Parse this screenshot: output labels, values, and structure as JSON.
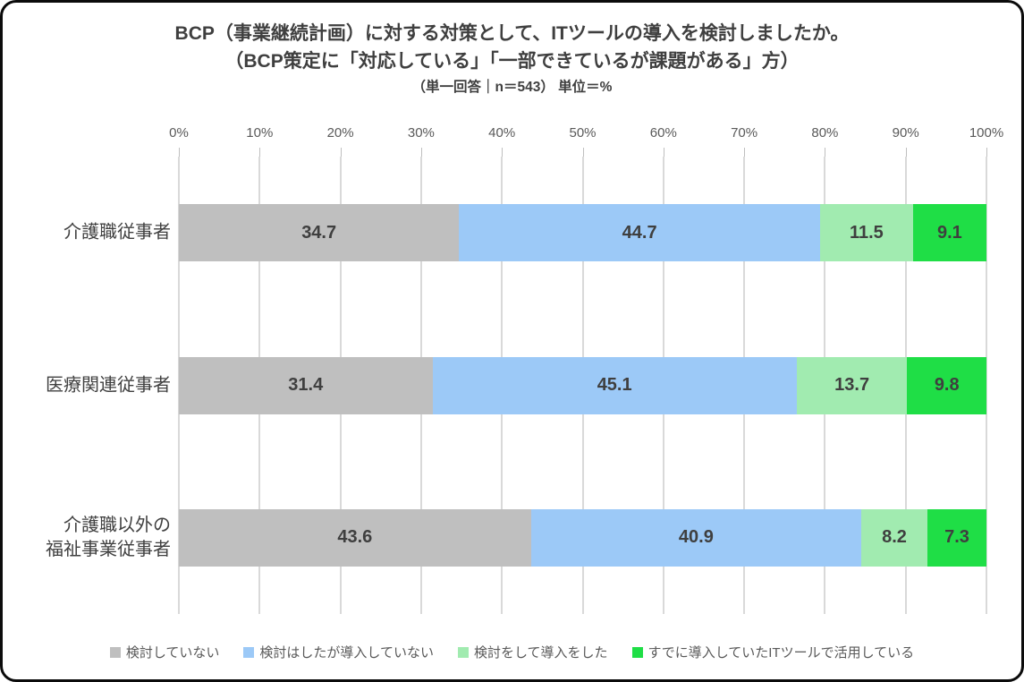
{
  "title": {
    "line1": "BCP（事業継続計画）に対する対策として、ITツールの導入を検討しましたか。",
    "line2": "（BCP策定に「対応している」「一部できているが課題がある」方）",
    "line3": "（単一回答｜n＝543） 単位＝%"
  },
  "chart_data": {
    "type": "bar",
    "orientation": "horizontal",
    "stacked": true,
    "unit": "%",
    "sample_size_text": "n＝543",
    "categories": [
      "介護職従事者",
      "医療関連従事者",
      "介護職以外の\n福祉事業従事者"
    ],
    "series": [
      {
        "name": "検討していない",
        "color": "#BFBFBF",
        "values": [
          34.7,
          31.4,
          43.6
        ]
      },
      {
        "name": "検討はしたが導入していない",
        "color": "#9CC9F7",
        "values": [
          44.7,
          45.1,
          40.9
        ]
      },
      {
        "name": "検討をして導入をした",
        "color": "#A1EBB0",
        "values": [
          11.5,
          13.7,
          8.2
        ]
      },
      {
        "name": "すでに導入していたITツールで活用している",
        "color": "#1FDE46",
        "values": [
          9.1,
          9.8,
          7.3
        ]
      }
    ],
    "x_axis": {
      "position": "top",
      "min": 0,
      "max": 100,
      "tick_labels": [
        "0%",
        "10%",
        "20%",
        "30%",
        "40%",
        "50%",
        "60%",
        "70%",
        "80%",
        "90%",
        "100%"
      ]
    },
    "grid": true,
    "gridline_color": "#D9D9D9",
    "legend_position": "bottom",
    "value_label_color": "#3f3f3f"
  }
}
